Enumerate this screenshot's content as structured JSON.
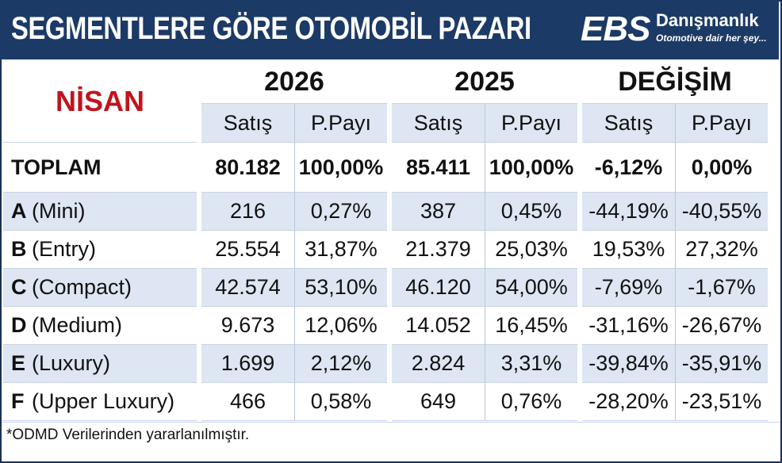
{
  "header": {
    "title": "SEGMENTLERE GÖRE OTOMOBİL PAZARI",
    "logo_main": "EBS",
    "logo_name": "Danışmanlık",
    "logo_tagline": "Otomotive dair her şey..."
  },
  "table": {
    "period_label": "NİSAN",
    "groups": [
      "2026",
      "2025",
      "DEĞİŞİM"
    ],
    "sub_headers": [
      "Satış",
      "P.Payı"
    ],
    "total": {
      "label": "TOPLAM",
      "values": [
        "80.182",
        "100,00%",
        "85.411",
        "100,00%",
        "-6,12%",
        "0,00%"
      ]
    },
    "rows": [
      {
        "code": "A",
        "name": "(Mini)",
        "values": [
          "216",
          "0,27%",
          "387",
          "0,45%",
          "-44,19%",
          "-40,55%"
        ]
      },
      {
        "code": "B",
        "name": "(Entry)",
        "values": [
          "25.554",
          "31,87%",
          "21.379",
          "25,03%",
          "19,53%",
          "27,32%"
        ]
      },
      {
        "code": "C",
        "name": "(Compact)",
        "values": [
          "42.574",
          "53,10%",
          "46.120",
          "54,00%",
          "-7,69%",
          "-1,67%"
        ]
      },
      {
        "code": "D",
        "name": "(Medium)",
        "values": [
          "9.673",
          "12,06%",
          "14.052",
          "16,45%",
          "-31,16%",
          "-26,67%"
        ]
      },
      {
        "code": "E",
        "name": "(Luxury)",
        "values": [
          "1.699",
          "2,12%",
          "2.824",
          "3,31%",
          "-39,84%",
          "-35,91%"
        ]
      },
      {
        "code": "F",
        "name": "(Upper Luxury)",
        "values": [
          "466",
          "0,58%",
          "649",
          "0,76%",
          "-28,20%",
          "-23,51%"
        ]
      }
    ]
  },
  "footnote": "*ODMD Verilerinden yararlanılmıştır.",
  "colors": {
    "header_bg": "#1c3a66",
    "accent_red": "#c0141c",
    "row_alt": "#dde6f2"
  }
}
